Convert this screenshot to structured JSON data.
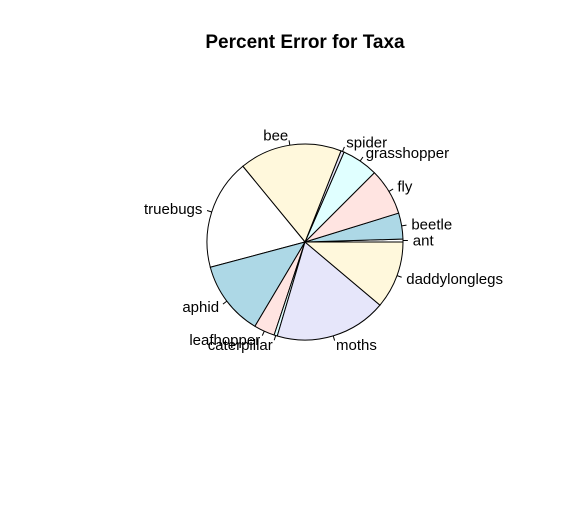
{
  "chart_data": {
    "type": "pie",
    "title": "Percent Error for Taxa",
    "start": "ant",
    "direction": "counterclockwise",
    "slices": [
      {
        "label": "ant",
        "value": 0.45,
        "color": "#ffffff"
      },
      {
        "label": "beetle",
        "value": 4.0,
        "color": "#add8e6"
      },
      {
        "label": "fly",
        "value": 7.2,
        "color": "#ffe4e1"
      },
      {
        "label": "grasshopper",
        "value": 5.6,
        "color": "#e0ffff"
      },
      {
        "label": "spider",
        "value": 0.5,
        "color": "#e6e6fa"
      },
      {
        "label": "bee",
        "value": 15.8,
        "color": "#fff8dc"
      },
      {
        "label": "truebugs",
        "value": 17.0,
        "color": "#ffffff"
      },
      {
        "label": "aphid",
        "value": 11.5,
        "color": "#add8e6"
      },
      {
        "label": "leafhopper",
        "value": 3.2,
        "color": "#ffe4e1"
      },
      {
        "label": "caterpillar",
        "value": 0.5,
        "color": "#e0ffff"
      },
      {
        "label": "moths",
        "value": 17.2,
        "color": "#e6e6fa"
      },
      {
        "label": "daddylonglegs",
        "value": 10.4,
        "color": "#fff8dc"
      }
    ]
  }
}
